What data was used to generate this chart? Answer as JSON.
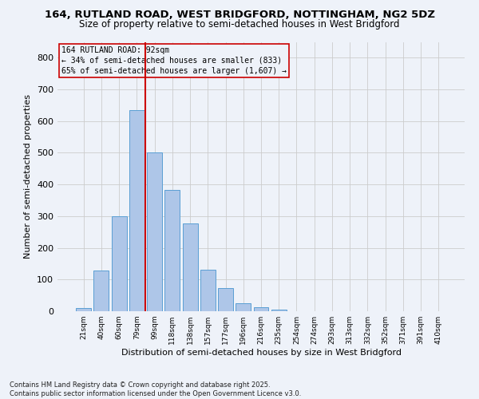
{
  "title1": "164, RUTLAND ROAD, WEST BRIDGFORD, NOTTINGHAM, NG2 5DZ",
  "title2": "Size of property relative to semi-detached houses in West Bridgford",
  "xlabel": "Distribution of semi-detached houses by size in West Bridgford",
  "ylabel": "Number of semi-detached properties",
  "bar_labels": [
    "21sqm",
    "40sqm",
    "60sqm",
    "79sqm",
    "99sqm",
    "118sqm",
    "138sqm",
    "157sqm",
    "177sqm",
    "196sqm",
    "216sqm",
    "235sqm",
    "254sqm",
    "274sqm",
    "293sqm",
    "313sqm",
    "332sqm",
    "352sqm",
    "371sqm",
    "391sqm",
    "410sqm"
  ],
  "bar_values": [
    10,
    128,
    300,
    635,
    500,
    383,
    278,
    130,
    73,
    25,
    12,
    5,
    1,
    0,
    0,
    0,
    0,
    0,
    0,
    0,
    0
  ],
  "bar_color": "#aec6e8",
  "bar_edgecolor": "#5a9fd4",
  "annotation_title": "164 RUTLAND ROAD: 92sqm",
  "annotation_line1": "← 34% of semi-detached houses are smaller (833)",
  "annotation_line2": "65% of semi-detached houses are larger (1,607) →",
  "vline_color": "#cc0000",
  "box_edgecolor": "#cc0000",
  "ylim": [
    0,
    850
  ],
  "yticks": [
    0,
    100,
    200,
    300,
    400,
    500,
    600,
    700,
    800
  ],
  "footer": "Contains HM Land Registry data © Crown copyright and database right 2025.\nContains public sector information licensed under the Open Government Licence v3.0.",
  "bg_color": "#eef2f9",
  "grid_color": "#cccccc"
}
